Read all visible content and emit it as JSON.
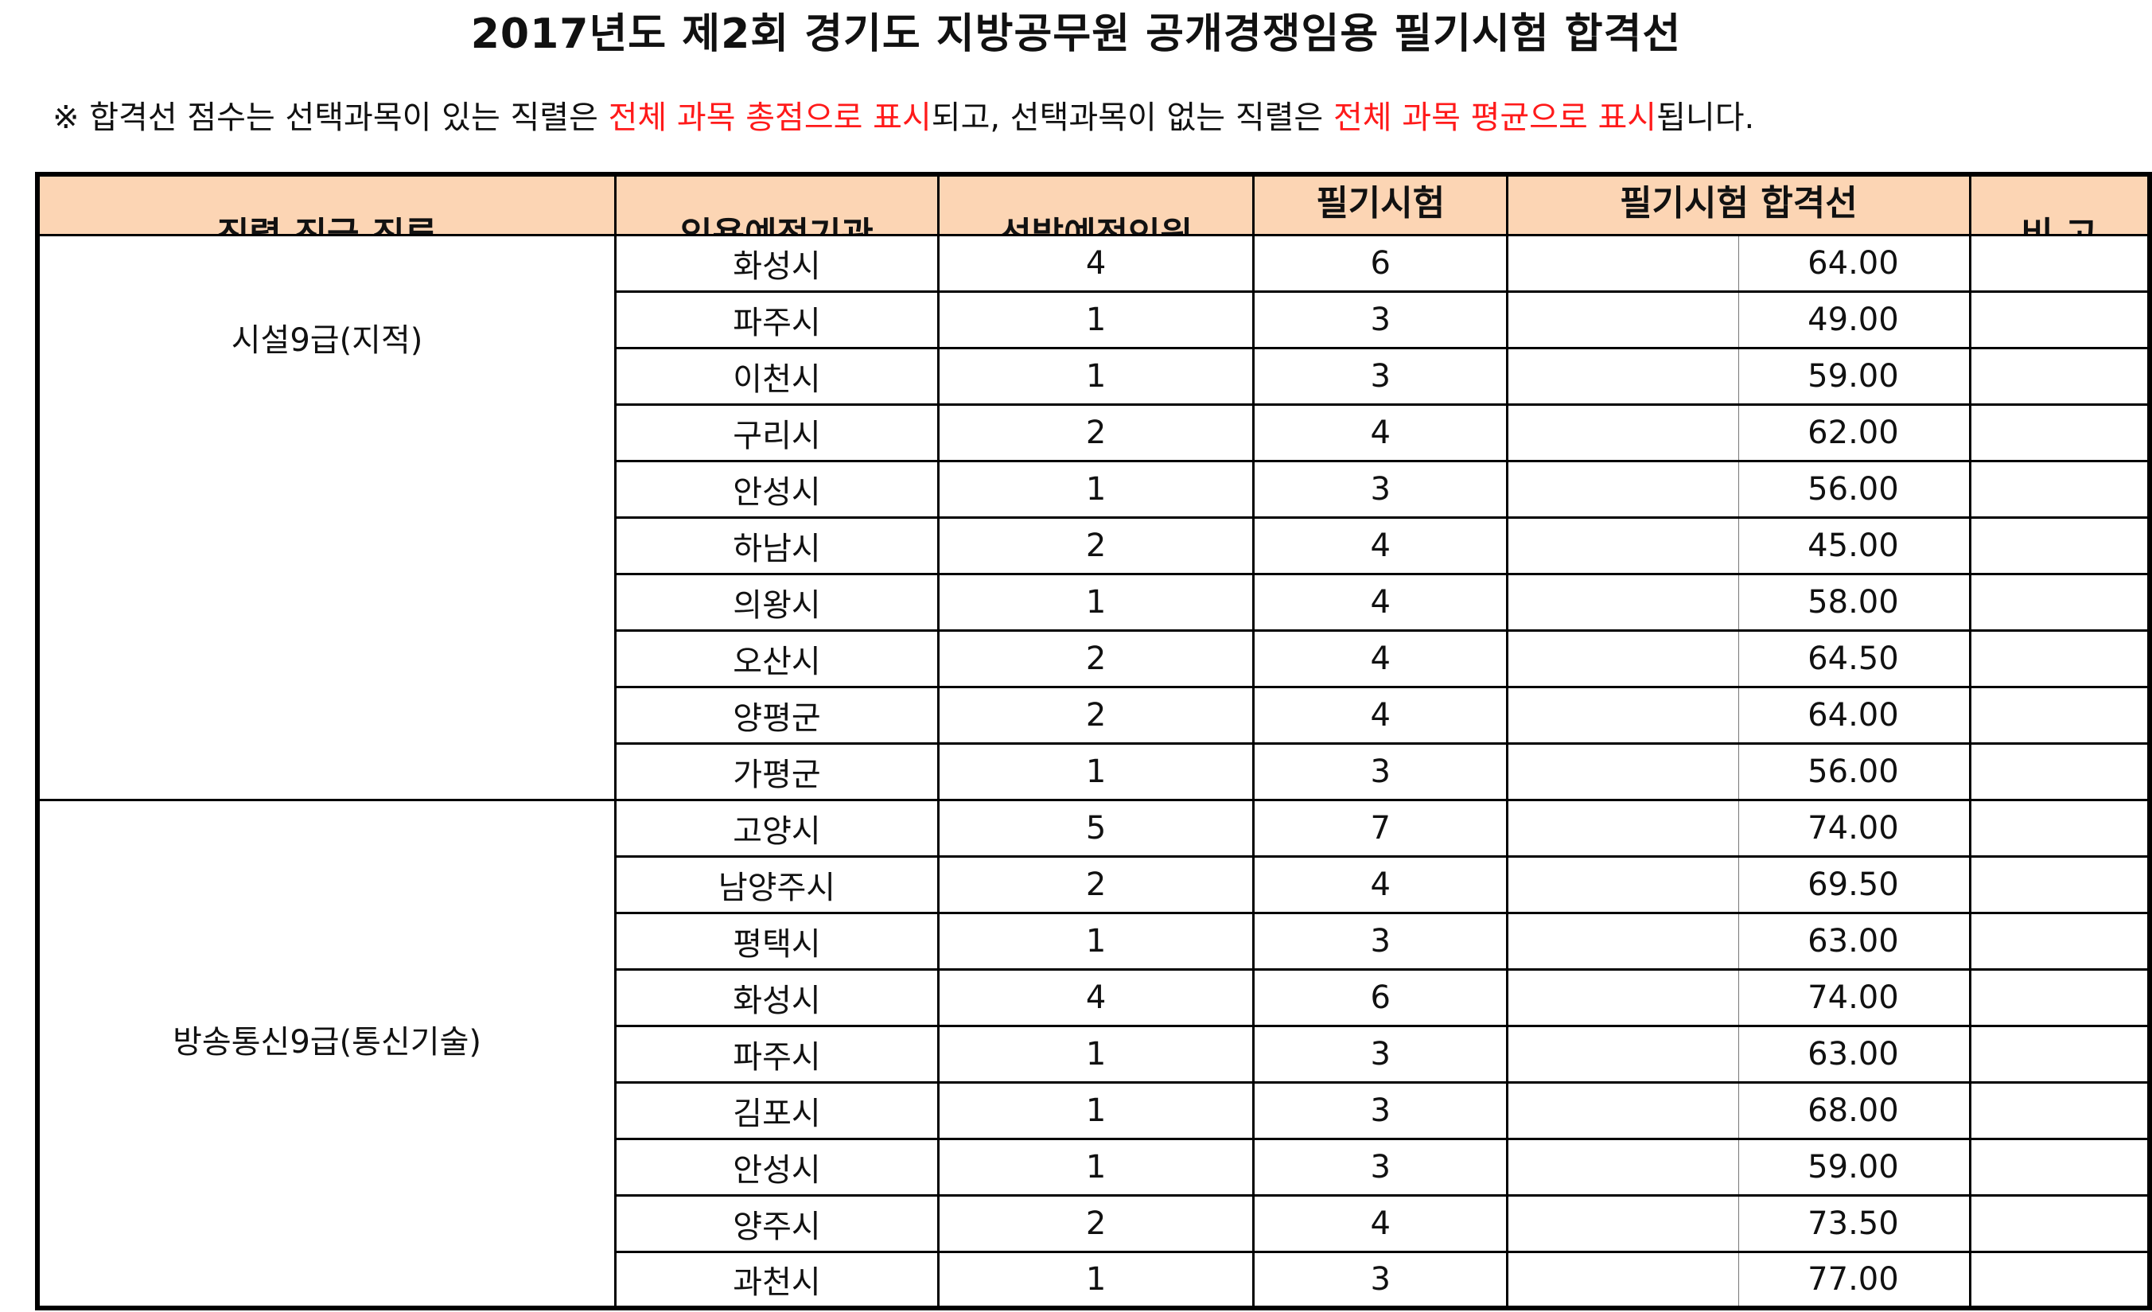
{
  "title": "2017년도 제2회 경기도 지방공무원 공개경쟁임용 필기시험 합격선",
  "note": {
    "p1": "※ 합격선 점수는 선택과목이 있는 직렬은 ",
    "r1": "전체 과목 총점으로 표시",
    "p2": "되고, 선택과목이 없는 직렬은 ",
    "r2": "전체 과목 평균으로 표시",
    "p3": "됩니다.",
    "accent_color": "#ff1a1a"
  },
  "header": {
    "col1": "직렬.직급.직류",
    "col2": "임용예정기관",
    "col3": "선발예정인원",
    "col4": "필기시험",
    "col5": "필기시험 합격선",
    "col6": "비 고",
    "bg_color": "#fcd5b4"
  },
  "groups": [
    {
      "name": "시설9급(지적)",
      "rows": [
        {
          "agency": "화성시",
          "planned": "4",
          "exam": "6",
          "score": "64.00"
        },
        {
          "agency": "파주시",
          "planned": "1",
          "exam": "3",
          "score": "49.00"
        },
        {
          "agency": "이천시",
          "planned": "1",
          "exam": "3",
          "score": "59.00"
        },
        {
          "agency": "구리시",
          "planned": "2",
          "exam": "4",
          "score": "62.00"
        },
        {
          "agency": "안성시",
          "planned": "1",
          "exam": "3",
          "score": "56.00"
        },
        {
          "agency": "하남시",
          "planned": "2",
          "exam": "4",
          "score": "45.00"
        },
        {
          "agency": "의왕시",
          "planned": "1",
          "exam": "4",
          "score": "58.00"
        },
        {
          "agency": "오산시",
          "planned": "2",
          "exam": "4",
          "score": "64.50"
        },
        {
          "agency": "양평군",
          "planned": "2",
          "exam": "4",
          "score": "64.00"
        },
        {
          "agency": "가평군",
          "planned": "1",
          "exam": "3",
          "score": "56.00"
        }
      ]
    },
    {
      "name": "방송통신9급(통신기술)",
      "rows": [
        {
          "agency": "고양시",
          "planned": "5",
          "exam": "7",
          "score": "74.00"
        },
        {
          "agency": "남양주시",
          "planned": "2",
          "exam": "4",
          "score": "69.50"
        },
        {
          "agency": "평택시",
          "planned": "1",
          "exam": "3",
          "score": "63.00"
        },
        {
          "agency": "화성시",
          "planned": "4",
          "exam": "6",
          "score": "74.00"
        },
        {
          "agency": "파주시",
          "planned": "1",
          "exam": "3",
          "score": "63.00"
        },
        {
          "agency": "김포시",
          "planned": "1",
          "exam": "3",
          "score": "68.00"
        },
        {
          "agency": "안성시",
          "planned": "1",
          "exam": "3",
          "score": "59.00"
        },
        {
          "agency": "양주시",
          "planned": "2",
          "exam": "4",
          "score": "73.50"
        },
        {
          "agency": "과천시",
          "planned": "1",
          "exam": "3",
          "score": "77.00"
        }
      ]
    }
  ]
}
